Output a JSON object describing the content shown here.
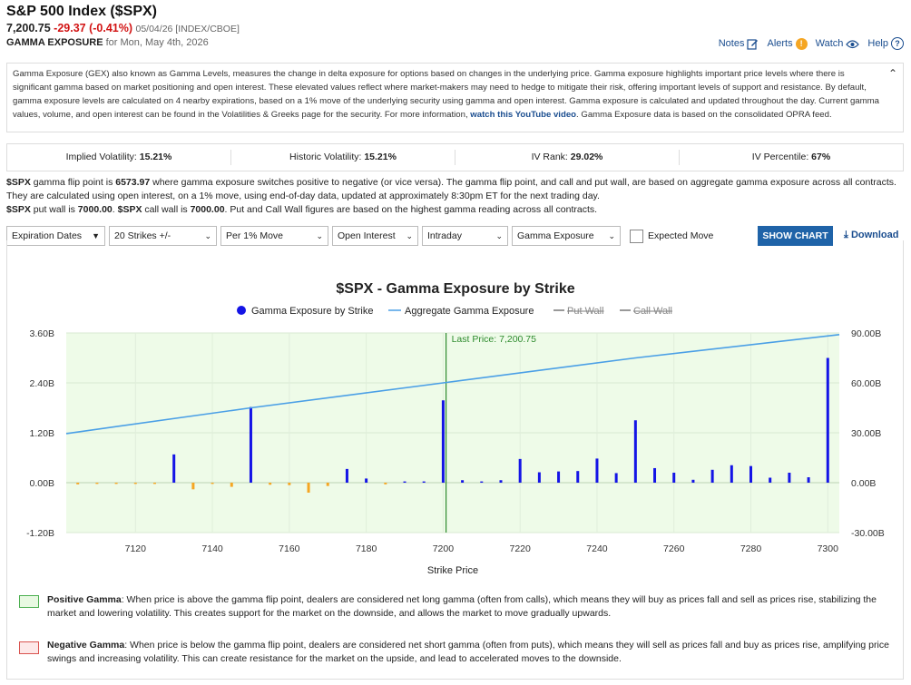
{
  "header": {
    "title": "S&P 500 Index ($SPX)",
    "price": "7,200.75",
    "change": "-29.37 (-0.41%)",
    "meta": "05/04/26 [INDEX/CBOE]",
    "gamma_label": "GAMMA EXPOSURE",
    "gamma_date": "for Mon, May 4th, 2026"
  },
  "toplinks": {
    "notes": "Notes",
    "alerts": "Alerts",
    "watch": "Watch",
    "help": "Help"
  },
  "description": {
    "text": "Gamma Exposure (GEX) also known as Gamma Levels, measures the change in delta exposure for options based on changes in the underlying price. Gamma exposure highlights important price levels where there is significant gamma based on market positioning and open interest. These elevated values reflect where market-makers may need to hedge to mitigate their risk, offering important levels of support and resistance. By default, gamma exposure levels are calculated on 4 nearby expirations, based on a 1% move of the underlying security using gamma and open interest. Gamma exposure is calculated and updated throughout the day. Current gamma values, volume, and open interest can be found in the Volatilities & Greeks page for the security. For more information, ",
    "link": "watch this YouTube video",
    "tail": ". Gamma Exposure data is based on the consolidated OPRA feed."
  },
  "stats": [
    {
      "label": "Implied Volatility:",
      "value": "15.21%"
    },
    {
      "label": "Historic Volatility:",
      "value": "15.21%"
    },
    {
      "label": "IV Rank:",
      "value": "29.02%"
    },
    {
      "label": "IV Percentile:",
      "value": "67%"
    }
  ],
  "info": {
    "p1a": "$SPX",
    "p1b": " gamma flip point is ",
    "flip": "6573.97",
    "p1c": " where gamma exposure switches positive to negative (or vice versa). The gamma flip point, and call and put wall, are based on aggregate gamma exposure across all contracts. They are calculated using open interest, on a 1% move, using end-of-day data, updated at approximately 8:30pm ET for the next trading day.",
    "p2a": "$SPX",
    "p2b": " put wall is ",
    "put_wall": "7000.00",
    "p2c": ". ",
    "p2d": "$SPX",
    "p2e": " call wall is ",
    "call_wall": "7000.00",
    "p2f": ". Put and Call Wall figures are based on the highest gamma reading across all contracts."
  },
  "filters": {
    "expiration": "Expiration Dates",
    "strikes": "20 Strikes +/-",
    "move": "Per 1% Move",
    "oi": "Open Interest",
    "intraday": "Intraday",
    "gamma": "Gamma Exposure",
    "expected_move": "Expected Move",
    "show_chart": "SHOW CHART",
    "download": "Download"
  },
  "colors": {
    "bar_positive": "#1414e6",
    "bar_negative": "#f5a623",
    "aggregate_line": "#4a9fe6",
    "last_price_line": "#2e8b2e",
    "chart_bg": "#eefbe8",
    "button": "#1f63a8",
    "link": "#1a4d8f",
    "negative_change": "#d21414"
  },
  "chart_data": {
    "type": "bar",
    "title": "$SPX - Gamma Exposure by Strike",
    "xlabel": "Strike Price",
    "legend": [
      "Gamma Exposure by Strike",
      "Aggregate Gamma Exposure",
      "Put Wall",
      "Call Wall"
    ],
    "last_price_label": "Last Price: 7,200.75",
    "last_price": 7200.75,
    "xlim": [
      7102,
      7303
    ],
    "xticks": [
      7120,
      7140,
      7160,
      7180,
      7200,
      7220,
      7240,
      7260,
      7280,
      7300
    ],
    "ylim_left": [
      -1.2,
      3.6
    ],
    "yticks_left": [
      "3.60B",
      "2.40B",
      "1.20B",
      "0.00B",
      "-1.20B"
    ],
    "ylim_right": [
      -30,
      90
    ],
    "yticks_right": [
      "90.00B",
      "60.00B",
      "30.00B",
      "0.00B",
      "-30.00B"
    ],
    "series": [
      {
        "name": "Gamma Exposure by Strike",
        "strikes": [
          7105,
          7110,
          7115,
          7120,
          7125,
          7130,
          7135,
          7140,
          7145,
          7150,
          7155,
          7160,
          7165,
          7170,
          7175,
          7180,
          7185,
          7190,
          7195,
          7200,
          7205,
          7210,
          7215,
          7220,
          7225,
          7230,
          7235,
          7240,
          7245,
          7250,
          7255,
          7260,
          7265,
          7270,
          7275,
          7280,
          7285,
          7290,
          7295,
          7300
        ],
        "values": [
          -0.04,
          -0.03,
          -0.03,
          -0.03,
          -0.03,
          0.68,
          -0.16,
          -0.03,
          -0.1,
          1.82,
          -0.05,
          -0.06,
          -0.24,
          -0.08,
          0.33,
          0.1,
          -0.04,
          0.03,
          0.03,
          1.98,
          0.06,
          0.03,
          0.06,
          0.57,
          0.25,
          0.27,
          0.28,
          0.58,
          0.23,
          1.5,
          0.35,
          0.24,
          0.07,
          0.31,
          0.42,
          0.4,
          0.12,
          0.24,
          0.13,
          3.0
        ]
      },
      {
        "name": "Aggregate Gamma Exposure",
        "x": [
          7102,
          7150,
          7200,
          7250,
          7303
        ],
        "y": [
          29.5,
          45,
          60,
          75,
          89
        ]
      }
    ]
  },
  "notes": {
    "positive_title": "Positive Gamma",
    "positive_text": ": When price is above the gamma flip point, dealers are considered net long gamma (often from calls), which means they will buy as prices fall and sell as prices rise, stabilizing the market and lowering volatility. This creates support for the market on the downside, and allows the market to move gradually upwards.",
    "negative_title": "Negative Gamma",
    "negative_text": ": When price is below the gamma flip point, dealers are considered net short gamma (often from puts), which means they will sell as prices fall and buy as prices rise, amplifying price swings and increasing volatility. This can create resistance for the market on the upside, and lead to accelerated moves to the downside."
  }
}
